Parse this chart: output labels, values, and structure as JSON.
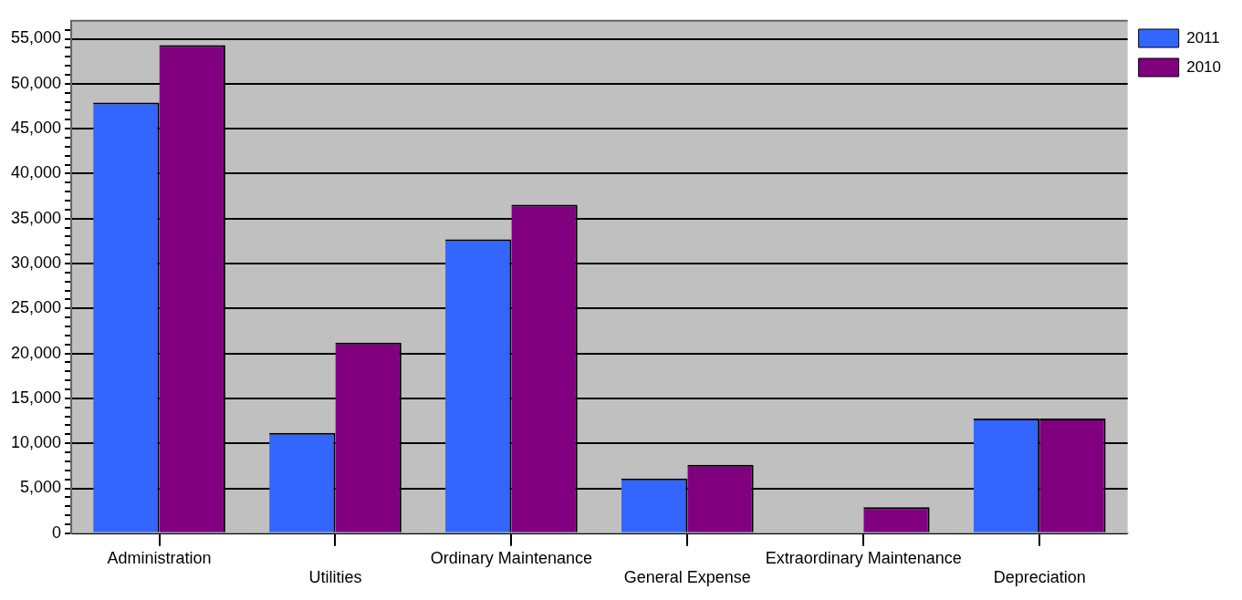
{
  "chart_data": {
    "type": "bar",
    "categories": [
      "Administration",
      "Utilities",
      "Ordinary Maintenance",
      "General Expense",
      "Extraordinary Maintenance",
      "Depreciation"
    ],
    "series": [
      {
        "name": "2011",
        "color": "#3366ff",
        "values": [
          47900,
          11150,
          32700,
          6100,
          0,
          12750
        ]
      },
      {
        "name": "2010",
        "color": "#800080",
        "values": [
          54300,
          21200,
          36550,
          7600,
          2900,
          12750
        ]
      }
    ],
    "ylim": [
      0,
      57000
    ],
    "yticks": [
      0,
      {
        "value": 1000,
        "label": null
      },
      {
        "value": 2000,
        "label": null
      },
      {
        "value": 3000,
        "label": null
      },
      {
        "value": 4000,
        "label": null
      },
      "5,000",
      {
        "value": 6000,
        "label": null
      },
      {
        "value": 7000,
        "label": null
      },
      {
        "value": 8000,
        "label": null
      },
      {
        "value": 9000,
        "label": null
      },
      {
        "value": 10000,
        "label": "10,000"
      },
      {
        "value": 11000,
        "label": null
      },
      {
        "value": 12000,
        "label": null
      },
      {
        "value": 13000,
        "label": null
      },
      {
        "value": 14000,
        "label": null
      },
      {
        "value": 15000,
        "label": "15,000"
      },
      {
        "value": 16000,
        "label": null
      },
      {
        "value": 17000,
        "label": null
      },
      {
        "value": 18000,
        "label": null
      },
      {
        "value": 19000,
        "label": null
      },
      {
        "value": 20000,
        "label": "20,000"
      },
      {
        "value": 21000,
        "label": null
      },
      {
        "value": 22000,
        "label": null
      },
      {
        "value": 23000,
        "label": null
      },
      {
        "value": 24000,
        "label": null
      },
      {
        "value": 25000,
        "label": "25,000"
      },
      {
        "value": 26000,
        "label": null
      },
      {
        "value": 27000,
        "label": null
      },
      {
        "value": 28000,
        "label": null
      },
      {
        "value": 29000,
        "label": null
      },
      {
        "value": 30000,
        "label": "30,000"
      },
      {
        "value": 31000,
        "label": null
      },
      {
        "value": 32000,
        "label": null
      },
      {
        "value": 33000,
        "label": null
      },
      {
        "value": 34000,
        "label": null
      },
      {
        "value": 35000,
        "label": "35,000"
      },
      {
        "value": 36000,
        "label": null
      },
      {
        "value": 37000,
        "label": null
      },
      {
        "value": 38000,
        "label": null
      },
      {
        "value": 39000,
        "label": null
      },
      {
        "value": 40000,
        "label": "40,000"
      },
      {
        "value": 41000,
        "label": null
      },
      {
        "value": 42000,
        "label": null
      },
      {
        "value": 43000,
        "label": null
      },
      {
        "value": 44000,
        "label": null
      },
      {
        "value": 45000,
        "label": "45,000"
      },
      {
        "value": 46000,
        "label": null
      },
      {
        "value": 47000,
        "label": null
      },
      {
        "value": 48000,
        "label": null
      },
      {
        "value": 49000,
        "label": null
      },
      {
        "value": 50000,
        "label": "50,000"
      },
      {
        "value": 51000,
        "label": null
      },
      {
        "value": 52000,
        "label": null
      },
      {
        "value": 53000,
        "label": null
      },
      {
        "value": 54000,
        "label": null
      },
      {
        "value": 55000,
        "label": "55,000"
      },
      {
        "value": 56000,
        "label": null
      }
    ],
    "grid": "y",
    "legend": "top right"
  }
}
